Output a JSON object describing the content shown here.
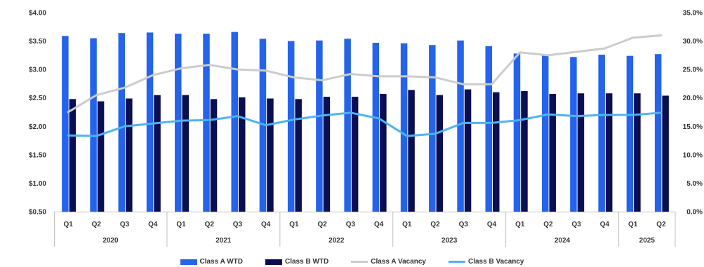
{
  "chart_data": {
    "type": "bar",
    "categories": [
      "Q1",
      "Q2",
      "Q3",
      "Q4",
      "Q1",
      "Q2",
      "Q3",
      "Q4",
      "Q1",
      "Q2",
      "Q3",
      "Q4",
      "Q1",
      "Q2",
      "Q3",
      "Q4",
      "Q1",
      "Q2",
      "Q3",
      "Q4",
      "Q1",
      "Q2"
    ],
    "year_groups": [
      {
        "label": "2020",
        "count": 4
      },
      {
        "label": "2021",
        "count": 4
      },
      {
        "label": "2022",
        "count": 4
      },
      {
        "label": "2023",
        "count": 4
      },
      {
        "label": "2024",
        "count": 4
      },
      {
        "label": "2025",
        "count": 2
      }
    ],
    "series": [
      {
        "name": "Class A WTD",
        "type": "bar",
        "axis": "left",
        "color": "#2563eb",
        "values": [
          3.59,
          3.55,
          3.64,
          3.65,
          3.63,
          3.63,
          3.66,
          3.54,
          3.5,
          3.51,
          3.54,
          3.47,
          3.46,
          3.43,
          3.51,
          3.41,
          3.28,
          3.25,
          3.22,
          3.26,
          3.24,
          3.27
        ]
      },
      {
        "name": "Class B WTD",
        "type": "bar",
        "axis": "left",
        "color": "#0a0f52",
        "values": [
          2.48,
          2.44,
          2.49,
          2.55,
          2.55,
          2.48,
          2.51,
          2.49,
          2.48,
          2.52,
          2.52,
          2.57,
          2.64,
          2.55,
          2.65,
          2.6,
          2.62,
          2.57,
          2.58,
          2.58,
          2.58,
          2.54
        ]
      },
      {
        "name": "Class A Vacancy",
        "type": "line",
        "axis": "right",
        "color": "#cccccc",
        "values": [
          17.5,
          20.5,
          21.8,
          24.0,
          25.2,
          25.8,
          25.0,
          24.8,
          23.6,
          23.1,
          24.2,
          23.8,
          23.8,
          23.6,
          22.4,
          22.4,
          28.0,
          27.5,
          28.1,
          28.7,
          30.6,
          31.0
        ]
      },
      {
        "name": "Class B Vacancy",
        "type": "line",
        "axis": "right",
        "color": "#4db3f5",
        "values": [
          13.4,
          13.3,
          15.0,
          15.5,
          16.0,
          16.1,
          16.8,
          15.2,
          16.2,
          16.9,
          17.4,
          16.4,
          13.3,
          13.7,
          15.6,
          15.6,
          16.1,
          17.1,
          16.8,
          17.0,
          17.0,
          17.4
        ]
      }
    ],
    "yleft": {
      "min": 0.5,
      "max": 4.0,
      "ticks": [
        "$0.50",
        "$1.00",
        "$1.50",
        "$2.00",
        "$2.50",
        "$3.00",
        "$3.50",
        "$4.00"
      ]
    },
    "yright": {
      "min": 0,
      "max": 35,
      "ticks": [
        "0.0%",
        "5.0%",
        "10.0%",
        "15.0%",
        "20.0%",
        "25.0%",
        "30.0%",
        "35.0%"
      ]
    },
    "grid": false,
    "legend_position": "bottom"
  }
}
